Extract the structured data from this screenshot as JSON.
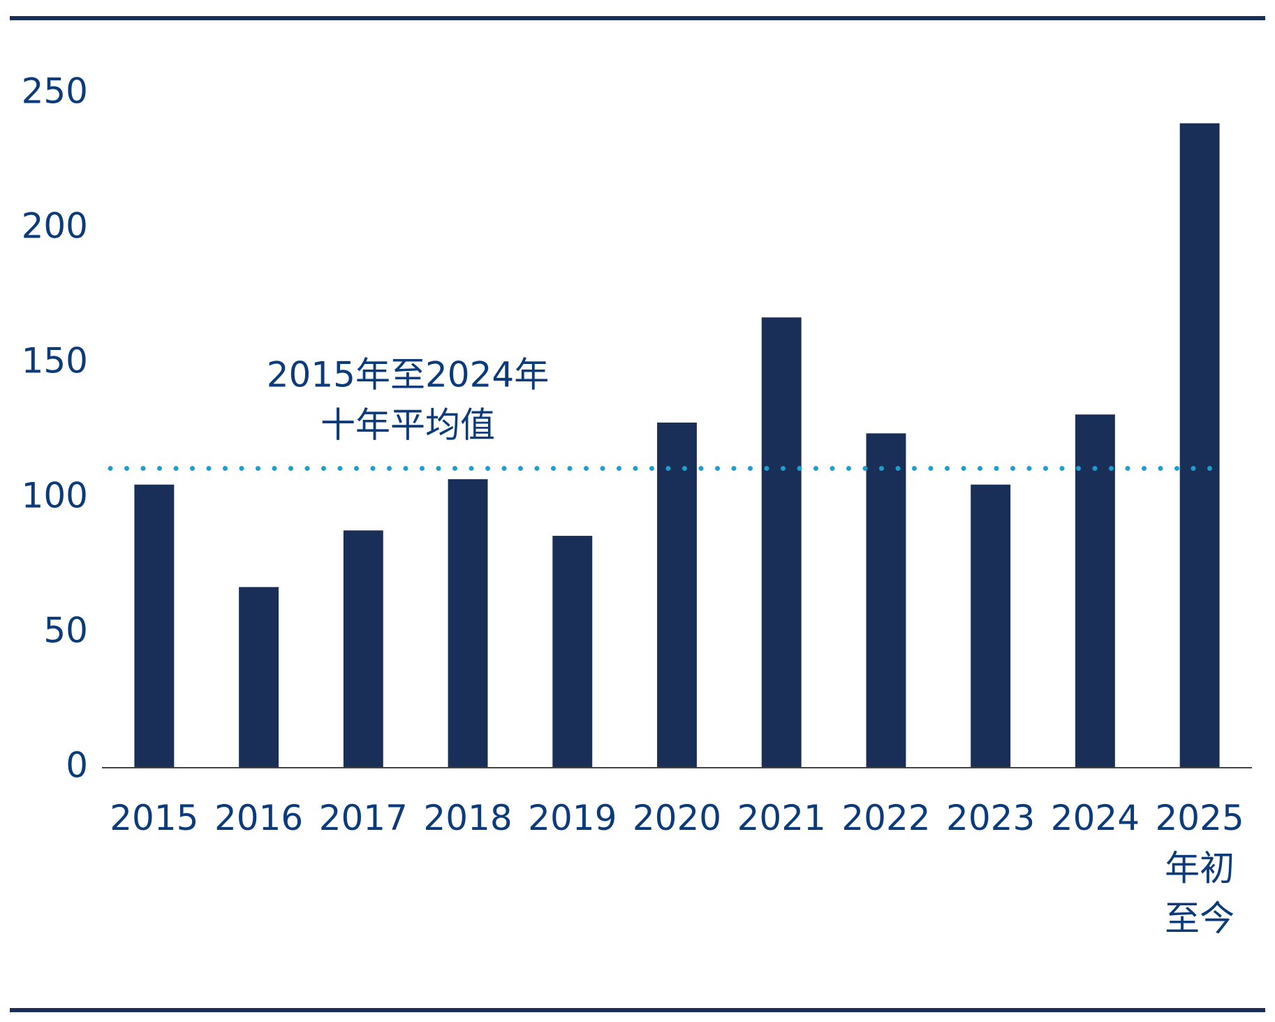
{
  "chart_data": {
    "type": "bar",
    "categories": [
      "2015",
      "2016",
      "2017",
      "2018",
      "2019",
      "2020",
      "2021",
      "2022",
      "2023",
      "2024",
      "2025\n年初\n至今"
    ],
    "values": [
      105,
      67,
      88,
      107,
      86,
      128,
      167,
      124,
      105,
      131,
      239
    ],
    "color": "#1a2f57",
    "ylim": [
      0,
      250
    ],
    "yticks": [
      0,
      50,
      100,
      150,
      200,
      250
    ],
    "grid": false,
    "reference_line": {
      "value": 111,
      "color": "#1a9fd0",
      "label_lines": [
        "2015年至2024年",
        "十年平均值"
      ]
    }
  }
}
